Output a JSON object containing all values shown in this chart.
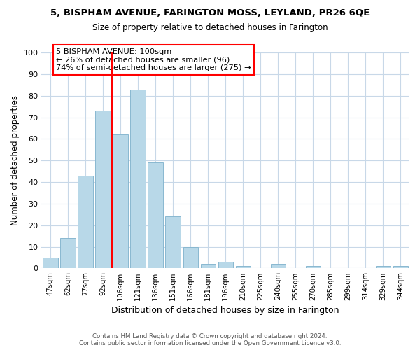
{
  "title": "5, BISPHAM AVENUE, FARINGTON MOSS, LEYLAND, PR26 6QE",
  "subtitle": "Size of property relative to detached houses in Farington",
  "xlabel": "Distribution of detached houses by size in Farington",
  "ylabel": "Number of detached properties",
  "bar_color": "#b8d8e8",
  "bar_edgecolor": "#89b8d0",
  "categories": [
    "47sqm",
    "62sqm",
    "77sqm",
    "92sqm",
    "106sqm",
    "121sqm",
    "136sqm",
    "151sqm",
    "166sqm",
    "181sqm",
    "196sqm",
    "210sqm",
    "225sqm",
    "240sqm",
    "255sqm",
    "270sqm",
    "285sqm",
    "299sqm",
    "314sqm",
    "329sqm",
    "344sqm"
  ],
  "values": [
    5,
    14,
    43,
    73,
    62,
    83,
    49,
    24,
    10,
    2,
    3,
    1,
    0,
    2,
    0,
    1,
    0,
    0,
    0,
    1,
    1
  ],
  "ylim": [
    0,
    100
  ],
  "yticks": [
    0,
    10,
    20,
    30,
    40,
    50,
    60,
    70,
    80,
    90,
    100
  ],
  "annotation_line1": "5 BISPHAM AVENUE: 100sqm",
  "annotation_line2": "← 26% of detached houses are smaller (96)",
  "annotation_line3": "74% of semi-detached houses are larger (275) →",
  "marker_bar_index": 3.5,
  "footer_line1": "Contains HM Land Registry data © Crown copyright and database right 2024.",
  "footer_line2": "Contains public sector information licensed under the Open Government Licence v3.0.",
  "bg_color": "#ffffff",
  "grid_color": "#c8d8e8"
}
